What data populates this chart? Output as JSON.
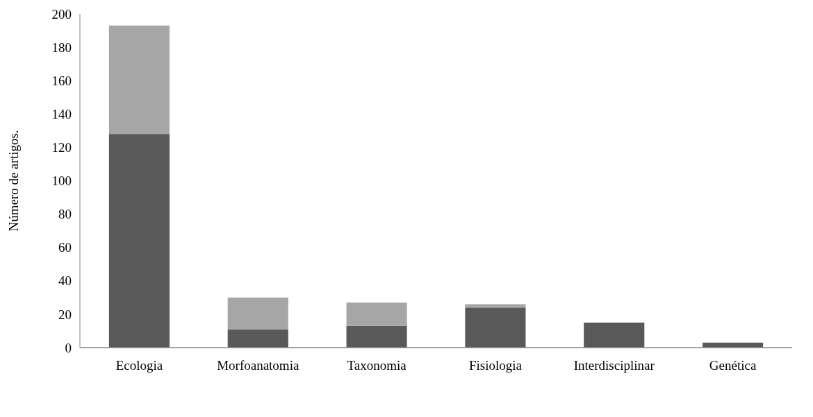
{
  "chart_data": {
    "type": "bar",
    "stacked": true,
    "ylabel": "Número de artigos.",
    "categories": [
      "Ecologia",
      "Morfoanatomia",
      "Taxonomia",
      "Fisiologia",
      "Interdisciplinar",
      "Genética"
    ],
    "series": [
      {
        "color": "#595959",
        "values": [
          128,
          11,
          13,
          24,
          15,
          3
        ]
      },
      {
        "color": "#a6a6a6",
        "values": [
          65,
          19,
          14,
          2,
          0,
          0
        ]
      }
    ],
    "ylim": [
      0,
      200
    ],
    "yticks": [
      0,
      20,
      40,
      60,
      80,
      100,
      120,
      140,
      160,
      180,
      200
    ],
    "grid": false
  }
}
